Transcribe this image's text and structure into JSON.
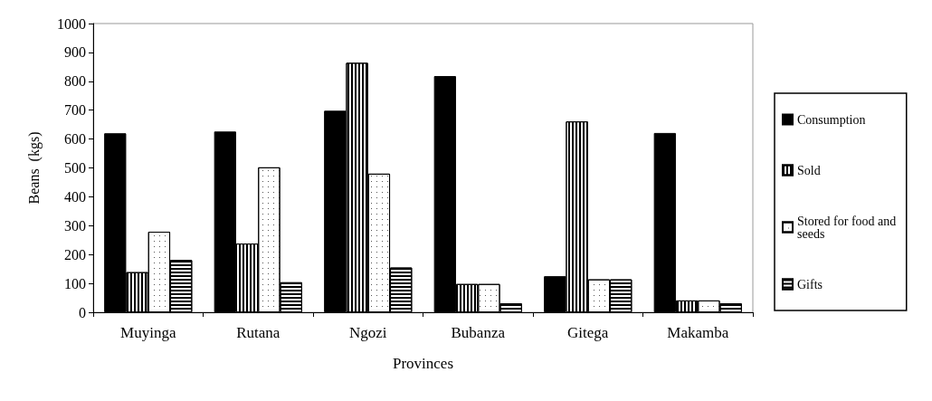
{
  "chart_data": {
    "type": "bar",
    "xlabel": "Provinces",
    "ylabel": "Beans  (kgs)",
    "categories": [
      "Muyinga",
      "Rutana",
      "Ngozi",
      "Bubanza",
      "Gitega",
      "Makamba"
    ],
    "series": [
      {
        "name": "Consumption",
        "color": "#000000",
        "values": [
          620,
          626,
          698,
          818,
          125,
          621
        ]
      },
      {
        "name": "Sold",
        "color": "#ffffff",
        "values": [
          139,
          238,
          864,
          98,
          661,
          41
        ]
      },
      {
        "name": "Stored for food and seeds",
        "color": "#ffffff",
        "values": [
          279,
          502,
          480,
          98,
          114,
          41
        ]
      },
      {
        "name": "Gifts",
        "color": "#ffffff",
        "values": [
          181,
          104,
          155,
          31,
          114,
          31
        ]
      }
    ],
    "ylim": [
      0,
      1000
    ],
    "yticks": [
      0,
      100,
      200,
      300,
      400,
      500,
      600,
      700,
      800,
      900,
      1000
    ],
    "grid": false,
    "legend": "right"
  }
}
